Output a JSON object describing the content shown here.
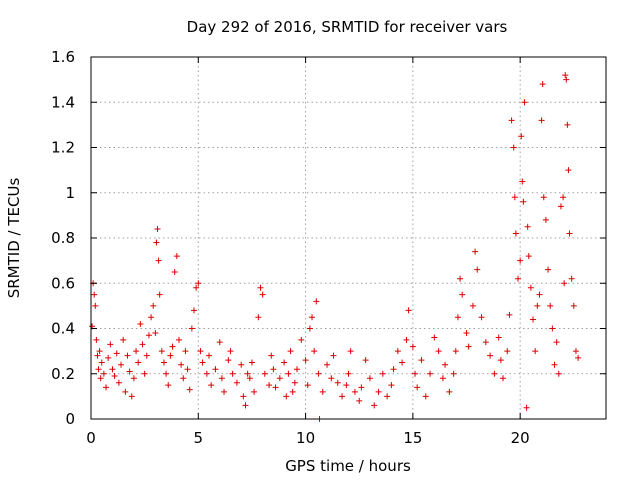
{
  "chart_data": {
    "type": "scatter",
    "title": "Day 292 of 2016, SRMTID for receiver vars",
    "xlabel": "GPS time / hours",
    "ylabel": "SRMTID / TECUs",
    "xlim": [
      0,
      24
    ],
    "ylim": [
      0,
      1.6
    ],
    "xticks": [
      0,
      5,
      10,
      15,
      20
    ],
    "xtick_labels": [
      "0",
      "5",
      "10",
      "15",
      "20"
    ],
    "yticks": [
      0,
      0.2,
      0.4,
      0.6,
      0.8,
      1,
      1.2,
      1.4,
      1.6
    ],
    "ytick_labels": [
      "0",
      "0.2",
      "0.4",
      "0.6",
      "0.8",
      "1",
      "1.2",
      "1.4",
      "1.6"
    ],
    "grid": true,
    "marker": "+",
    "color": "#dd0000",
    "series": [
      {
        "name": "SRMTID",
        "points": [
          [
            0.05,
            0.41
          ],
          [
            0.1,
            0.6
          ],
          [
            0.15,
            0.55
          ],
          [
            0.2,
            0.5
          ],
          [
            0.25,
            0.35
          ],
          [
            0.3,
            0.28
          ],
          [
            0.35,
            0.22
          ],
          [
            0.4,
            0.3
          ],
          [
            0.45,
            0.18
          ],
          [
            0.5,
            0.25
          ],
          [
            0.6,
            0.2
          ],
          [
            0.7,
            0.14
          ],
          [
            0.8,
            0.27
          ],
          [
            0.9,
            0.33
          ],
          [
            1.0,
            0.22
          ],
          [
            1.1,
            0.19
          ],
          [
            1.2,
            0.29
          ],
          [
            1.3,
            0.16
          ],
          [
            1.4,
            0.24
          ],
          [
            1.5,
            0.35
          ],
          [
            1.6,
            0.12
          ],
          [
            1.7,
            0.28
          ],
          [
            1.8,
            0.21
          ],
          [
            1.9,
            0.1
          ],
          [
            2.0,
            0.18
          ],
          [
            2.1,
            0.3
          ],
          [
            2.2,
            0.25
          ],
          [
            2.3,
            0.42
          ],
          [
            2.4,
            0.33
          ],
          [
            2.5,
            0.2
          ],
          [
            2.6,
            0.28
          ],
          [
            2.7,
            0.37
          ],
          [
            2.8,
            0.45
          ],
          [
            2.9,
            0.5
          ],
          [
            3.0,
            0.38
          ],
          [
            3.05,
            0.78
          ],
          [
            3.1,
            0.84
          ],
          [
            3.15,
            0.7
          ],
          [
            3.2,
            0.55
          ],
          [
            3.3,
            0.3
          ],
          [
            3.4,
            0.25
          ],
          [
            3.5,
            0.2
          ],
          [
            3.6,
            0.15
          ],
          [
            3.7,
            0.28
          ],
          [
            3.8,
            0.32
          ],
          [
            3.9,
            0.65
          ],
          [
            4.0,
            0.72
          ],
          [
            4.1,
            0.35
          ],
          [
            4.2,
            0.24
          ],
          [
            4.3,
            0.18
          ],
          [
            4.4,
            0.3
          ],
          [
            4.5,
            0.22
          ],
          [
            4.6,
            0.13
          ],
          [
            4.7,
            0.4
          ],
          [
            4.8,
            0.48
          ],
          [
            4.9,
            0.58
          ],
          [
            5.0,
            0.6
          ],
          [
            5.1,
            0.3
          ],
          [
            5.2,
            0.25
          ],
          [
            5.4,
            0.2
          ],
          [
            5.5,
            0.28
          ],
          [
            5.6,
            0.15
          ],
          [
            5.8,
            0.22
          ],
          [
            6.0,
            0.34
          ],
          [
            6.1,
            0.18
          ],
          [
            6.2,
            0.12
          ],
          [
            6.4,
            0.26
          ],
          [
            6.5,
            0.3
          ],
          [
            6.6,
            0.2
          ],
          [
            6.8,
            0.16
          ],
          [
            7.0,
            0.24
          ],
          [
            7.1,
            0.1
          ],
          [
            7.2,
            0.06
          ],
          [
            7.3,
            0.2
          ],
          [
            7.4,
            0.18
          ],
          [
            7.5,
            0.25
          ],
          [
            7.6,
            0.12
          ],
          [
            7.8,
            0.45
          ],
          [
            7.9,
            0.58
          ],
          [
            8.0,
            0.55
          ],
          [
            8.1,
            0.2
          ],
          [
            8.3,
            0.15
          ],
          [
            8.4,
            0.28
          ],
          [
            8.5,
            0.22
          ],
          [
            8.6,
            0.14
          ],
          [
            8.8,
            0.18
          ],
          [
            9.0,
            0.25
          ],
          [
            9.1,
            0.1
          ],
          [
            9.2,
            0.2
          ],
          [
            9.3,
            0.3
          ],
          [
            9.4,
            0.12
          ],
          [
            9.5,
            0.16
          ],
          [
            9.6,
            0.22
          ],
          [
            9.8,
            0.35
          ],
          [
            10.0,
            0.26
          ],
          [
            10.1,
            0.15
          ],
          [
            10.2,
            0.4
          ],
          [
            10.3,
            0.45
          ],
          [
            10.4,
            0.3
          ],
          [
            10.5,
            0.52
          ],
          [
            10.6,
            0.2
          ],
          [
            10.65,
            0.0
          ],
          [
            10.8,
            0.12
          ],
          [
            11.0,
            0.24
          ],
          [
            11.2,
            0.18
          ],
          [
            11.3,
            0.28
          ],
          [
            11.5,
            0.16
          ],
          [
            11.7,
            0.1
          ],
          [
            11.9,
            0.15
          ],
          [
            12.0,
            0.2
          ],
          [
            12.1,
            0.3
          ],
          [
            12.3,
            0.12
          ],
          [
            12.5,
            0.08
          ],
          [
            12.6,
            0.14
          ],
          [
            12.8,
            0.26
          ],
          [
            13.0,
            0.18
          ],
          [
            13.2,
            0.06
          ],
          [
            13.4,
            0.12
          ],
          [
            13.6,
            0.2
          ],
          [
            13.8,
            0.1
          ],
          [
            14.0,
            0.15
          ],
          [
            14.1,
            0.22
          ],
          [
            14.3,
            0.3
          ],
          [
            14.5,
            0.25
          ],
          [
            14.7,
            0.35
          ],
          [
            14.8,
            0.48
          ],
          [
            15.0,
            0.32
          ],
          [
            15.1,
            0.2
          ],
          [
            15.2,
            0.14
          ],
          [
            15.4,
            0.26
          ],
          [
            15.6,
            0.1
          ],
          [
            15.8,
            0.2
          ],
          [
            16.0,
            0.36
          ],
          [
            16.2,
            0.3
          ],
          [
            16.4,
            0.18
          ],
          [
            16.5,
            0.24
          ],
          [
            16.7,
            0.12
          ],
          [
            16.9,
            0.2
          ],
          [
            17.0,
            0.3
          ],
          [
            17.1,
            0.45
          ],
          [
            17.2,
            0.62
          ],
          [
            17.3,
            0.55
          ],
          [
            17.5,
            0.38
          ],
          [
            17.6,
            0.32
          ],
          [
            17.8,
            0.5
          ],
          [
            17.9,
            0.74
          ],
          [
            18.0,
            0.66
          ],
          [
            18.2,
            0.45
          ],
          [
            18.4,
            0.34
          ],
          [
            18.6,
            0.28
          ],
          [
            18.8,
            0.2
          ],
          [
            19.0,
            0.36
          ],
          [
            19.1,
            0.26
          ],
          [
            19.2,
            0.18
          ],
          [
            19.4,
            0.3
          ],
          [
            19.5,
            0.46
          ],
          [
            19.6,
            1.32
          ],
          [
            19.7,
            1.2
          ],
          [
            19.75,
            0.98
          ],
          [
            19.8,
            0.82
          ],
          [
            19.9,
            0.62
          ],
          [
            20.0,
            0.7
          ],
          [
            20.05,
            1.25
          ],
          [
            20.1,
            1.05
          ],
          [
            20.15,
            0.96
          ],
          [
            20.2,
            1.4
          ],
          [
            20.3,
            0.05
          ],
          [
            20.35,
            0.85
          ],
          [
            20.4,
            0.72
          ],
          [
            20.5,
            0.58
          ],
          [
            20.6,
            0.44
          ],
          [
            20.7,
            0.3
          ],
          [
            20.8,
            0.5
          ],
          [
            20.9,
            0.55
          ],
          [
            21.0,
            1.32
          ],
          [
            21.05,
            1.48
          ],
          [
            21.1,
            0.98
          ],
          [
            21.2,
            0.88
          ],
          [
            21.3,
            0.66
          ],
          [
            21.4,
            0.5
          ],
          [
            21.5,
            0.4
          ],
          [
            21.6,
            0.24
          ],
          [
            21.7,
            0.34
          ],
          [
            21.8,
            0.2
          ],
          [
            21.9,
            0.94
          ],
          [
            22.0,
            0.98
          ],
          [
            22.05,
            0.6
          ],
          [
            22.1,
            1.52
          ],
          [
            22.15,
            1.5
          ],
          [
            22.2,
            1.3
          ],
          [
            22.25,
            1.1
          ],
          [
            22.3,
            0.82
          ],
          [
            22.4,
            0.62
          ],
          [
            22.5,
            0.5
          ],
          [
            22.6,
            0.3
          ],
          [
            22.7,
            0.27
          ]
        ]
      }
    ]
  }
}
